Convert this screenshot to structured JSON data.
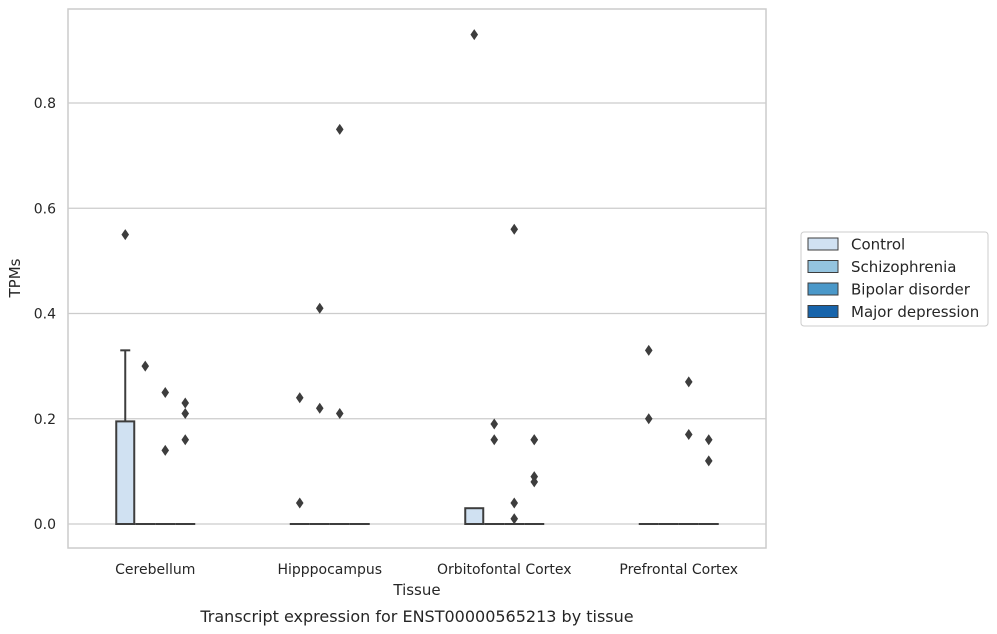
{
  "caption": "Transcript expression for ENST00000565213 by tissue",
  "chart_data": {
    "type": "box",
    "title": "",
    "xlabel": "Tissue",
    "ylabel": "TPMs",
    "ylim": [
      -0.045,
      0.98
    ],
    "yticks": [
      0.0,
      0.2,
      0.4,
      0.6,
      0.8
    ],
    "ytick_labels": [
      "0.0",
      "0.2",
      "0.4",
      "0.6",
      "0.8"
    ],
    "grid": "horizontal",
    "legend_position": "right",
    "categories": [
      "Cerebellum",
      "Hipppocampus",
      "Orbitofontal Cortex",
      "Prefrontal Cortex"
    ],
    "series": [
      {
        "name": "Control",
        "color": "#d0e1f2",
        "boxes": [
          {
            "q1": 0.0,
            "median": 0.0,
            "q3": 0.195,
            "whisker_low": 0.0,
            "whisker_high": 0.33,
            "outliers": [
              0.55
            ]
          },
          {
            "q1": 0.0,
            "median": 0.0,
            "q3": 0.0,
            "whisker_low": 0.0,
            "whisker_high": 0.0,
            "outliers": [
              0.24,
              0.04
            ]
          },
          {
            "q1": 0.0,
            "median": 0.0,
            "q3": 0.03,
            "whisker_low": 0.0,
            "whisker_high": 0.03,
            "outliers": [
              0.93
            ]
          },
          {
            "q1": 0.0,
            "median": 0.0,
            "q3": 0.0,
            "whisker_low": 0.0,
            "whisker_high": 0.0,
            "outliers": [
              0.33,
              0.2
            ]
          }
        ]
      },
      {
        "name": "Schizophrenia",
        "color": "#94c4df",
        "boxes": [
          {
            "q1": 0.0,
            "median": 0.0,
            "q3": 0.0,
            "whisker_low": 0.0,
            "whisker_high": 0.0,
            "outliers": [
              0.3
            ]
          },
          {
            "q1": 0.0,
            "median": 0.0,
            "q3": 0.0,
            "whisker_low": 0.0,
            "whisker_high": 0.0,
            "outliers": [
              0.41,
              0.22
            ]
          },
          {
            "q1": 0.0,
            "median": 0.0,
            "q3": 0.0,
            "whisker_low": 0.0,
            "whisker_high": 0.0,
            "outliers": [
              0.19,
              0.16
            ]
          },
          {
            "q1": 0.0,
            "median": 0.0,
            "q3": 0.0,
            "whisker_low": 0.0,
            "whisker_high": 0.0,
            "outliers": []
          }
        ]
      },
      {
        "name": "Bipolar disorder",
        "color": "#4a98c9",
        "boxes": [
          {
            "q1": 0.0,
            "median": 0.0,
            "q3": 0.0,
            "whisker_low": 0.0,
            "whisker_high": 0.0,
            "outliers": [
              0.25,
              0.14
            ]
          },
          {
            "q1": 0.0,
            "median": 0.0,
            "q3": 0.0,
            "whisker_low": 0.0,
            "whisker_high": 0.0,
            "outliers": [
              0.75,
              0.21
            ]
          },
          {
            "q1": 0.0,
            "median": 0.0,
            "q3": 0.0,
            "whisker_low": 0.0,
            "whisker_high": 0.0,
            "outliers": [
              0.56,
              0.04,
              0.01
            ]
          },
          {
            "q1": 0.0,
            "median": 0.0,
            "q3": 0.0,
            "whisker_low": 0.0,
            "whisker_high": 0.0,
            "outliers": [
              0.27,
              0.17
            ]
          }
        ]
      },
      {
        "name": "Major depression",
        "color": "#1764ab",
        "boxes": [
          {
            "q1": 0.0,
            "median": 0.0,
            "q3": 0.0,
            "whisker_low": 0.0,
            "whisker_high": 0.0,
            "outliers": [
              0.23,
              0.21,
              0.16
            ]
          },
          {
            "q1": 0.0,
            "median": 0.0,
            "q3": 0.0,
            "whisker_low": 0.0,
            "whisker_high": 0.0,
            "outliers": []
          },
          {
            "q1": 0.0,
            "median": 0.0,
            "q3": 0.0,
            "whisker_low": 0.0,
            "whisker_high": 0.0,
            "outliers": [
              0.16,
              0.16,
              0.09,
              0.08
            ]
          },
          {
            "q1": 0.0,
            "median": 0.0,
            "q3": 0.0,
            "whisker_low": 0.0,
            "whisker_high": 0.0,
            "outliers": [
              0.16,
              0.12
            ]
          }
        ]
      }
    ]
  }
}
